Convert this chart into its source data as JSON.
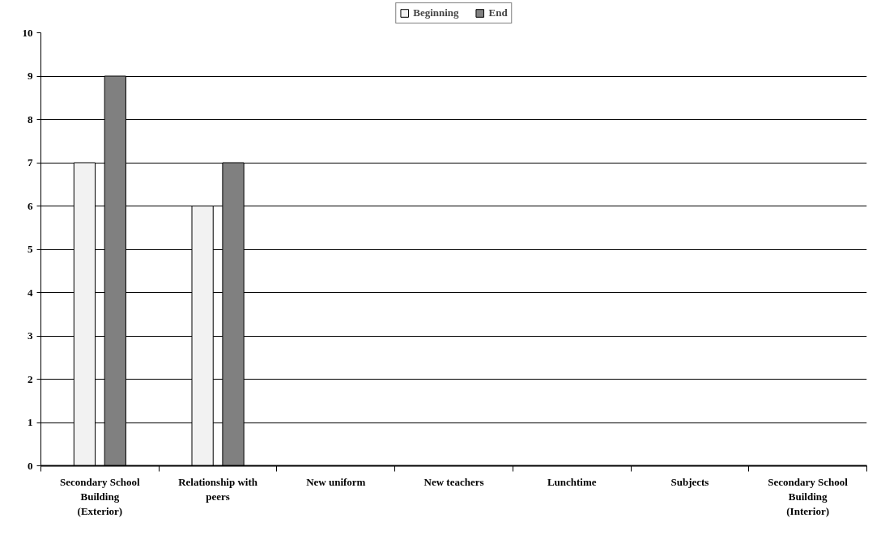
{
  "chart_data": {
    "type": "bar",
    "categories": [
      "Secondary School Building (Exterior)",
      "Relationship with peers",
      "New uniform",
      "New teachers",
      "Lunchtime",
      "Subjects",
      "Secondary School Building (Interior)"
    ],
    "series": [
      {
        "name": "Beginning",
        "color": "#f2f2f2",
        "values": [
          7,
          6,
          null,
          null,
          null,
          null,
          null
        ]
      },
      {
        "name": "End",
        "color": "#808080",
        "values": [
          9,
          7,
          null,
          null,
          null,
          null,
          null
        ]
      }
    ],
    "ylim": [
      0,
      10
    ],
    "yticks": [
      0,
      1,
      2,
      3,
      4,
      5,
      6,
      7,
      8,
      9,
      10
    ],
    "grid": "y",
    "legend": "top"
  }
}
